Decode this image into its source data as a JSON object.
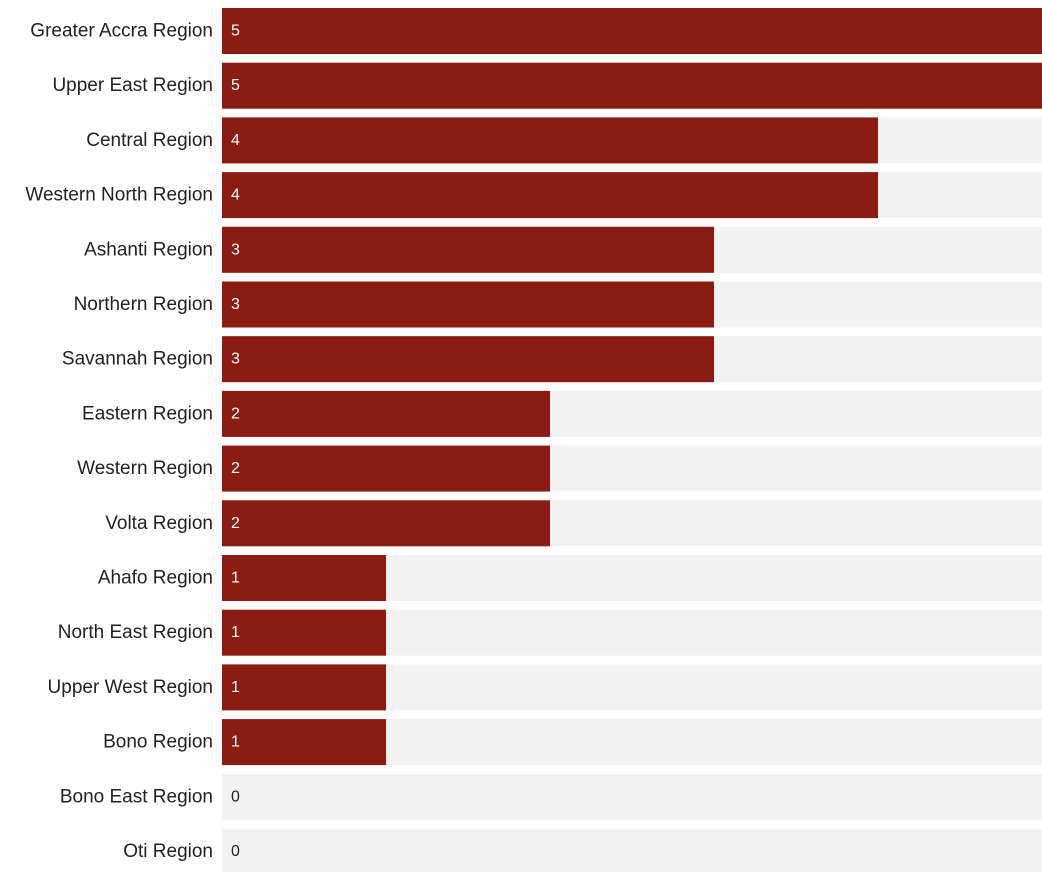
{
  "chart_data": {
    "type": "bar",
    "orientation": "horizontal",
    "title": "",
    "xlabel": "",
    "ylabel": "",
    "xlim": [
      0,
      5
    ],
    "grid": false,
    "legend": "none",
    "colors": {
      "bar": "#8b1c14",
      "track": "#f2f2f2",
      "label_text": "#222222",
      "value_inside": "#ffffff",
      "value_outside": "#222222"
    },
    "categories": [
      "Greater Accra Region",
      "Upper East Region",
      "Central Region",
      "Western North Region",
      "Ashanti Region",
      "Northern Region",
      "Savannah Region",
      "Eastern Region",
      "Western Region",
      "Volta Region",
      "Ahafo Region",
      "North East Region",
      "Upper West Region",
      "Bono Region",
      "Bono East Region",
      "Oti Region"
    ],
    "values": [
      5,
      5,
      4,
      4,
      3,
      3,
      3,
      2,
      2,
      2,
      1,
      1,
      1,
      1,
      0,
      0
    ],
    "value_labels": [
      "5",
      "5",
      "4",
      "4",
      "3",
      "3",
      "3",
      "2",
      "2",
      "2",
      "1",
      "1",
      "1",
      "1",
      "0",
      "0"
    ]
  }
}
